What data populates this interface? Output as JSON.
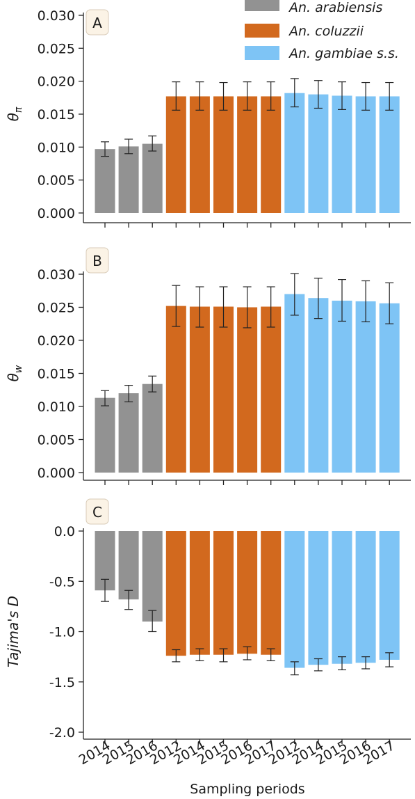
{
  "legend": [
    {
      "label": "An. arabiensis",
      "color": "#929292"
    },
    {
      "label": "An. coluzzii",
      "color": "#d2691e"
    },
    {
      "label": "An. gambiae s.s.",
      "color": "#7ec4f5"
    }
  ],
  "xlabel": "Sampling periods",
  "chart_data": [
    {
      "type": "bar",
      "panel": "A",
      "ylabel": "θπ",
      "ylim": [
        0,
        0.03
      ],
      "yticks": [
        "0.000",
        "0.005",
        "0.010",
        "0.015",
        "0.020",
        "0.025",
        "0.030"
      ],
      "categories": [
        "2014",
        "2015",
        "2016",
        "2012",
        "2014",
        "2015",
        "2016",
        "2017",
        "2012",
        "2014",
        "2015",
        "2016",
        "2017"
      ],
      "groups": [
        "An. arabiensis",
        "An. arabiensis",
        "An. arabiensis",
        "An. coluzzii",
        "An. coluzzii",
        "An. coluzzii",
        "An. coluzzii",
        "An. coluzzii",
        "An. gambiae s.s.",
        "An. gambiae s.s.",
        "An. gambiae s.s.",
        "An. gambiae s.s.",
        "An. gambiae s.s."
      ],
      "values": [
        0.0097,
        0.0101,
        0.0105,
        0.0177,
        0.0177,
        0.0177,
        0.0177,
        0.0177,
        0.0182,
        0.018,
        0.0178,
        0.0177,
        0.0177
      ],
      "err_low": [
        0.0086,
        0.009,
        0.0094,
        0.0156,
        0.0156,
        0.0156,
        0.0156,
        0.0156,
        0.0161,
        0.0159,
        0.0157,
        0.0156,
        0.0156
      ],
      "err_high": [
        0.0108,
        0.0112,
        0.0117,
        0.0199,
        0.0199,
        0.0198,
        0.0199,
        0.0199,
        0.0204,
        0.0201,
        0.0199,
        0.0198,
        0.0198
      ]
    },
    {
      "type": "bar",
      "panel": "B",
      "ylabel": "θw",
      "ylim": [
        0,
        0.03
      ],
      "yticks": [
        "0.000",
        "0.005",
        "0.010",
        "0.015",
        "0.020",
        "0.025",
        "0.030"
      ],
      "categories": [
        "2014",
        "2015",
        "2016",
        "2012",
        "2014",
        "2015",
        "2016",
        "2017",
        "2012",
        "2014",
        "2015",
        "2016",
        "2017"
      ],
      "groups": [
        "An. arabiensis",
        "An. arabiensis",
        "An. arabiensis",
        "An. coluzzii",
        "An. coluzzii",
        "An. coluzzii",
        "An. coluzzii",
        "An. coluzzii",
        "An. gambiae s.s.",
        "An. gambiae s.s.",
        "An. gambiae s.s.",
        "An. gambiae s.s.",
        "An. gambiae s.s."
      ],
      "values": [
        0.0113,
        0.012,
        0.0134,
        0.0252,
        0.0251,
        0.0251,
        0.025,
        0.0251,
        0.027,
        0.0264,
        0.026,
        0.0259,
        0.0256
      ],
      "err_low": [
        0.0101,
        0.0107,
        0.0122,
        0.0221,
        0.022,
        0.022,
        0.0219,
        0.022,
        0.0238,
        0.0233,
        0.0229,
        0.0228,
        0.0225
      ],
      "err_high": [
        0.0124,
        0.0132,
        0.0146,
        0.0283,
        0.0281,
        0.0281,
        0.0281,
        0.0281,
        0.0301,
        0.0294,
        0.0292,
        0.029,
        0.0287
      ]
    },
    {
      "type": "bar",
      "panel": "C",
      "ylabel": "Tajima's D",
      "ylim": [
        -2.0,
        0.0
      ],
      "yticks": [
        "-2.0",
        "-1.5",
        "-1.0",
        "-0.5",
        "0.0"
      ],
      "categories": [
        "2014",
        "2015",
        "2016",
        "2012",
        "2014",
        "2015",
        "2016",
        "2017",
        "2012",
        "2014",
        "2015",
        "2016",
        "2017"
      ],
      "groups": [
        "An. arabiensis",
        "An. arabiensis",
        "An. arabiensis",
        "An. coluzzii",
        "An. coluzzii",
        "An. coluzzii",
        "An. coluzzii",
        "An. coluzzii",
        "An. gambiae s.s.",
        "An. gambiae s.s.",
        "An. gambiae s.s.",
        "An. gambiae s.s.",
        "An. gambiae s.s."
      ],
      "values": [
        -0.59,
        -0.68,
        -0.9,
        -1.24,
        -1.23,
        -1.23,
        -1.22,
        -1.23,
        -1.36,
        -1.33,
        -1.32,
        -1.31,
        -1.28
      ],
      "err_low": [
        -0.7,
        -0.78,
        -1.0,
        -1.3,
        -1.29,
        -1.3,
        -1.28,
        -1.29,
        -1.43,
        -1.39,
        -1.38,
        -1.37,
        -1.35
      ],
      "err_high": [
        -0.48,
        -0.59,
        -0.79,
        -1.18,
        -1.17,
        -1.17,
        -1.15,
        -1.17,
        -1.3,
        -1.27,
        -1.25,
        -1.25,
        -1.21
      ]
    }
  ]
}
